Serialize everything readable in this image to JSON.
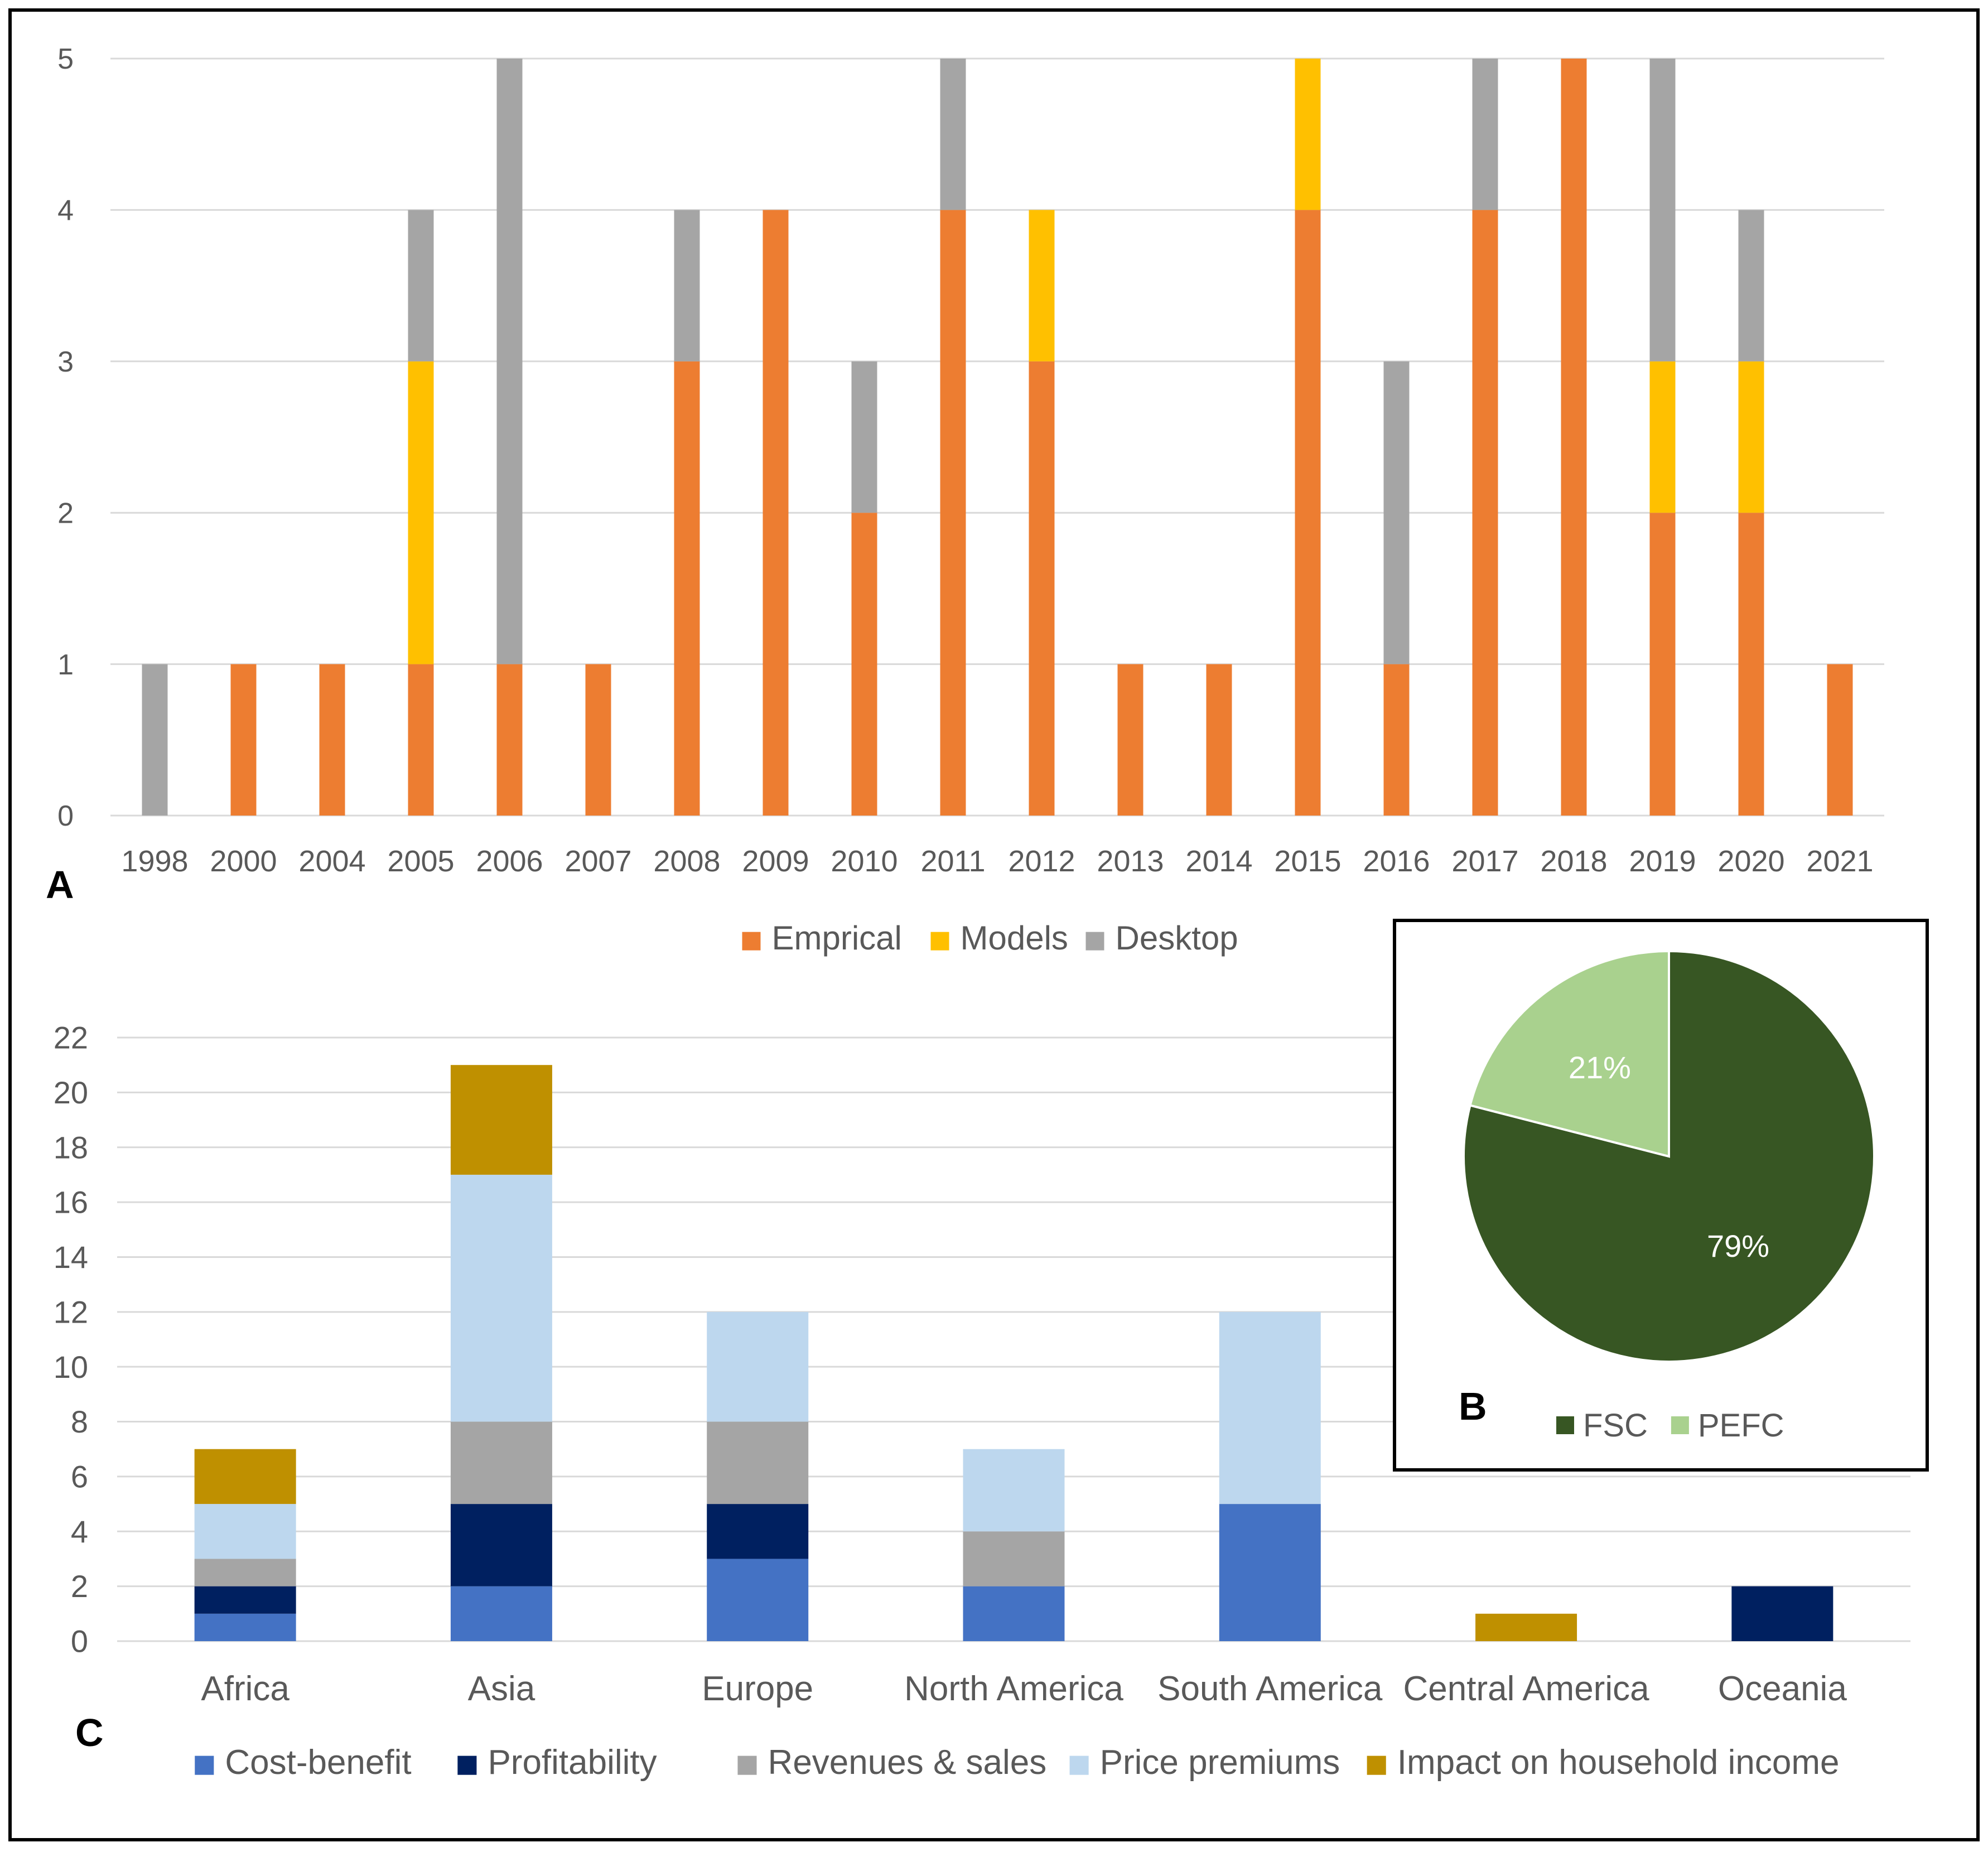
{
  "colors": {
    "empirical": "#ED7D31",
    "models": "#FFC000",
    "desktop": "#A5A5A5",
    "cost_benefit": "#4472C4",
    "profitability": "#002060",
    "revenues_sales": "#A5A5A5",
    "price_premiums": "#BDD7EE",
    "household_income": "#BF9000",
    "fsc": "#375623",
    "pefc": "#A9D18E",
    "grid": "#D9D9D9",
    "axis_text": "#595959"
  },
  "chart_data": [
    {
      "id": "A",
      "panel_label": "A",
      "type": "bar",
      "stacked": true,
      "categories": [
        "1998",
        "2000",
        "2004",
        "2005",
        "2006",
        "2007",
        "2008",
        "2009",
        "2010",
        "2011",
        "2012",
        "2013",
        "2014",
        "2015",
        "2016",
        "2017",
        "2018",
        "2019",
        "2020",
        "2021"
      ],
      "series": [
        {
          "name": "Emprical",
          "color_key": "empirical",
          "values": [
            0,
            1,
            1,
            1,
            1,
            1,
            3,
            4,
            2,
            4,
            3,
            1,
            1,
            4,
            1,
            4,
            5,
            2,
            2,
            1
          ]
        },
        {
          "name": "Models",
          "color_key": "models",
          "values": [
            0,
            0,
            0,
            2,
            0,
            0,
            0,
            0,
            0,
            0,
            1,
            0,
            0,
            1,
            0,
            0,
            0,
            1,
            1,
            0
          ]
        },
        {
          "name": "Desktop",
          "color_key": "desktop",
          "values": [
            1,
            0,
            0,
            1,
            4,
            0,
            1,
            0,
            1,
            1,
            0,
            0,
            0,
            0,
            2,
            1,
            0,
            2,
            1,
            0
          ]
        }
      ],
      "yticks": [
        0,
        1,
        2,
        3,
        4,
        5
      ],
      "ylim": [
        0,
        5
      ],
      "grid": true,
      "legend": "bottom"
    },
    {
      "id": "C",
      "panel_label": "C",
      "type": "bar",
      "stacked": true,
      "categories": [
        "Africa",
        "Asia",
        "Europe",
        "North America",
        "South America",
        "Central America",
        "Oceania"
      ],
      "series": [
        {
          "name": "Cost-benefit",
          "color_key": "cost_benefit",
          "values": [
            1,
            2,
            3,
            2,
            5,
            0,
            0
          ]
        },
        {
          "name": "Profitability",
          "color_key": "profitability",
          "values": [
            1,
            3,
            2,
            0,
            0,
            0,
            2
          ]
        },
        {
          "name": "Revenues & sales",
          "color_key": "revenues_sales",
          "values": [
            1,
            3,
            3,
            2,
            0,
            0,
            0
          ]
        },
        {
          "name": "Price premiums",
          "color_key": "price_premiums",
          "values": [
            2,
            9,
            4,
            3,
            7,
            0,
            0
          ]
        },
        {
          "name": "Impact on household income",
          "color_key": "household_income",
          "values": [
            2,
            4,
            0,
            0,
            0,
            1,
            0
          ]
        }
      ],
      "yticks": [
        0,
        2,
        4,
        6,
        8,
        10,
        12,
        14,
        16,
        18,
        20,
        22
      ],
      "ylim": [
        0,
        22
      ],
      "grid": true,
      "legend": "bottom"
    },
    {
      "id": "B",
      "panel_label": "B",
      "type": "pie",
      "slices": [
        {
          "name": "FSC",
          "value": 79,
          "label": "79%",
          "color_key": "fsc"
        },
        {
          "name": "PEFC",
          "value": 21,
          "label": "21%",
          "color_key": "pefc"
        }
      ],
      "legend": "bottom"
    }
  ]
}
